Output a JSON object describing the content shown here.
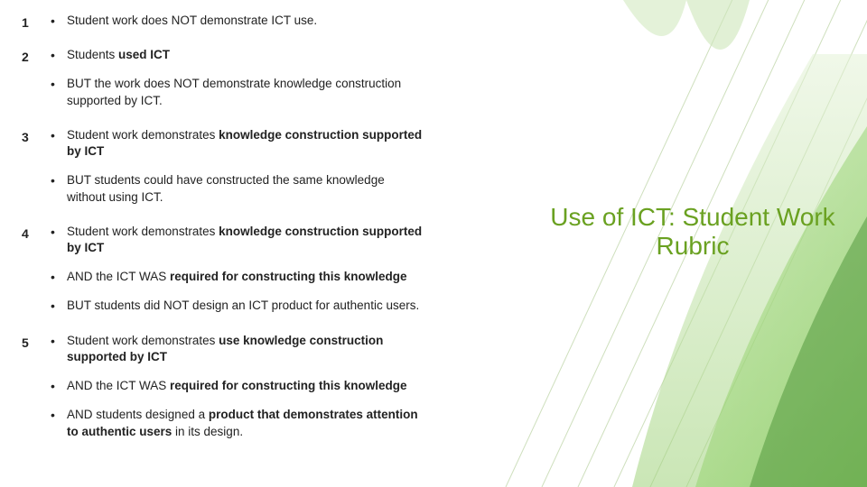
{
  "title": "Use of ICT: Student Work Rubric",
  "title_color": "#6aa121",
  "title_fontsize": 28,
  "background_color": "#ffffff",
  "rubric": [
    {
      "level": "1",
      "points_html": [
        "Student work does NOT demonstrate ICT use."
      ]
    },
    {
      "level": "2",
      "points_html": [
        "Students <b>used ICT</b>",
        "BUT the work does NOT demonstrate knowledge construction supported by ICT."
      ]
    },
    {
      "level": "3",
      "points_html": [
        "Student work demonstrates <b>knowledge construction supported by ICT</b>",
        "BUT students could have constructed the same knowledge without using ICT."
      ]
    },
    {
      "level": "4",
      "points_html": [
        "Student work demonstrates <b>knowledge construction supported by ICT</b>",
        "AND the ICT WAS <b>required for constructing this knowledge</b>",
        "BUT students did NOT design an ICT product for authentic users."
      ]
    },
    {
      "level": "5",
      "points_html": [
        "Student work demonstrates <b>use knowledge construction supported by ICT</b>",
        "AND the ICT WAS <b>required for constructing this knowledge</b>",
        "AND students designed a <b>product that demonstrates attention to authentic users</b> in its design."
      ]
    }
  ],
  "art": {
    "colors": {
      "leaf_dark": "#3f8a2b",
      "leaf_mid": "#6cbf3a",
      "leaf_light": "#b7e29a",
      "leaf_pale": "#e4f2d7",
      "line": "#9bbf77"
    },
    "line_width": 1
  }
}
